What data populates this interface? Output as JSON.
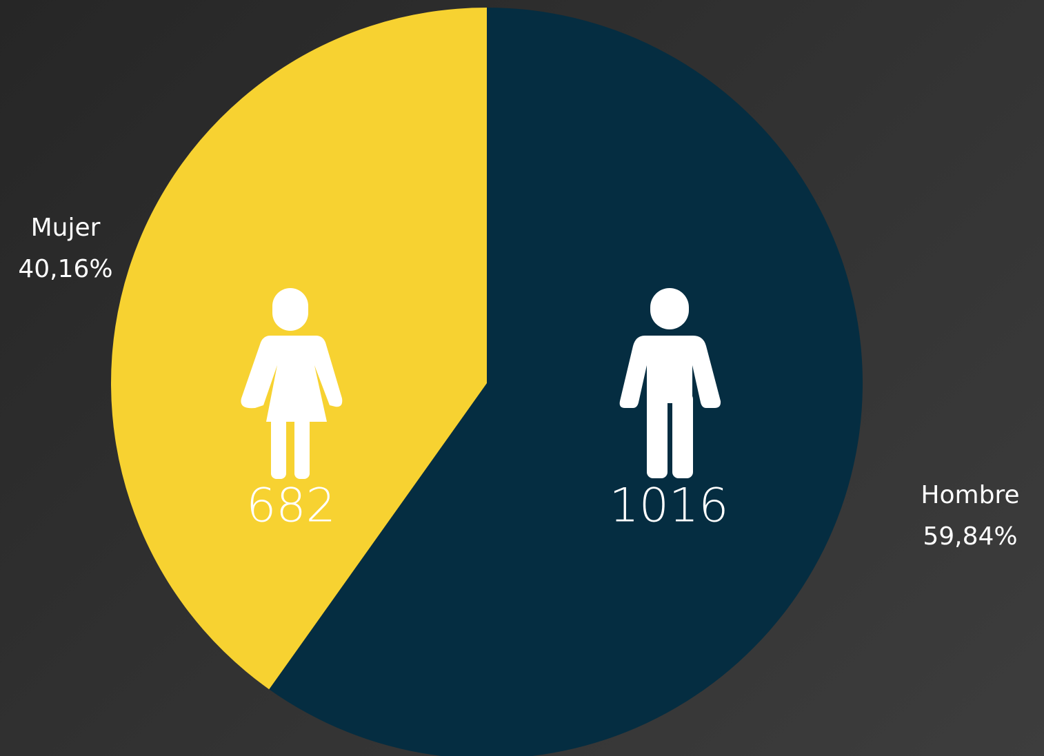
{
  "chart_data": {
    "type": "pie",
    "categories": [
      "Hombre",
      "Mujer"
    ],
    "values": [
      1016,
      682
    ],
    "percent_labels": [
      "59,84%",
      "40,16%"
    ],
    "colors": [
      "#052d41",
      "#f7d231"
    ]
  }
}
